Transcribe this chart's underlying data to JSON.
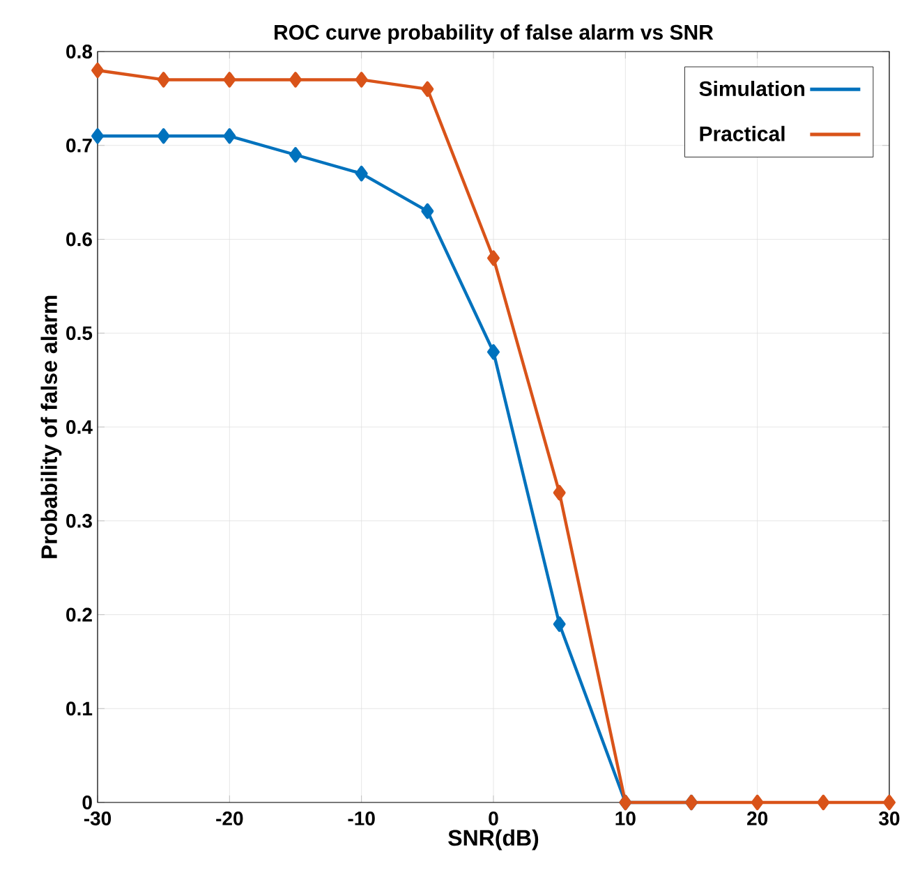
{
  "chart_data": {
    "type": "line",
    "title": "ROC curve probability of false alarm vs SNR",
    "xlabel": "SNR(dB)",
    "ylabel": "Probability of false alarm",
    "x": [
      -30,
      -25,
      -20,
      -15,
      -10,
      -5,
      0,
      5,
      10,
      15,
      20,
      25,
      30
    ],
    "series": [
      {
        "name": "Simulation",
        "color": "#0072bd",
        "values": [
          0.71,
          0.71,
          0.71,
          0.69,
          0.67,
          0.63,
          0.48,
          0.19,
          0,
          0,
          null,
          null,
          null
        ]
      },
      {
        "name": "Practical",
        "color": "#d95319",
        "values": [
          0.78,
          0.77,
          0.77,
          0.77,
          0.77,
          0.76,
          0.58,
          0.33,
          0,
          0,
          0,
          0,
          0
        ]
      }
    ],
    "xlim": [
      -30,
      30
    ],
    "ylim": [
      0,
      0.8
    ],
    "xticks": [
      -30,
      -20,
      -10,
      0,
      10,
      20,
      30
    ],
    "yticks": [
      0,
      0.1,
      0.2,
      0.3,
      0.4,
      0.5,
      0.6,
      0.7,
      0.8
    ],
    "grid": true,
    "legend": "top right",
    "marker": "diamond",
    "line_style": "solid"
  }
}
